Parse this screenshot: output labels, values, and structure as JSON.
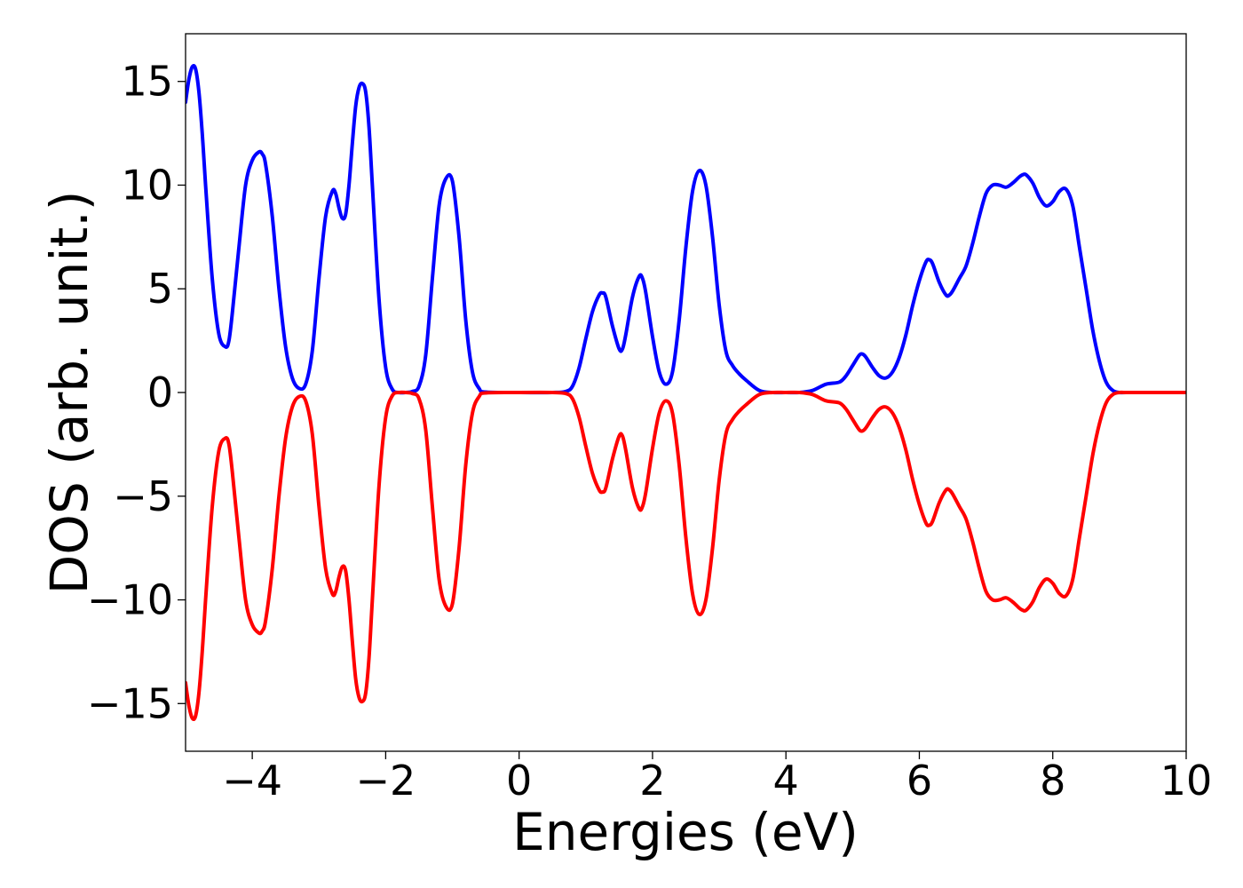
{
  "chart_data": {
    "type": "line",
    "title": "",
    "xlabel": "Energies (eV)",
    "ylabel": "DOS (arb. unit.)",
    "xlim": [
      -5,
      10
    ],
    "ylim": [
      -17.3,
      17.3
    ],
    "grid": false,
    "legend": "none",
    "x_ticks": [
      -4,
      -2,
      0,
      2,
      4,
      6,
      8,
      10
    ],
    "x_tick_labels": [
      "−4",
      "−2",
      "0",
      "2",
      "4",
      "6",
      "8",
      "10"
    ],
    "y_ticks": [
      15,
      10,
      5,
      0,
      -5,
      -10,
      -15
    ],
    "y_tick_labels": [
      "15",
      "10",
      "5",
      "0",
      "−5",
      "−10",
      "−15"
    ],
    "series": [
      {
        "color": "#0000ff",
        "x": [
          -5.0,
          -4.95,
          -4.9,
          -4.85,
          -4.8,
          -4.75,
          -4.7,
          -4.6,
          -4.5,
          -4.4,
          -4.35,
          -4.3,
          -4.2,
          -4.1,
          -4.0,
          -3.9,
          -3.85,
          -3.8,
          -3.7,
          -3.6,
          -3.5,
          -3.4,
          -3.3,
          -3.2,
          -3.1,
          -3.0,
          -2.9,
          -2.8,
          -2.75,
          -2.7,
          -2.65,
          -2.6,
          -2.55,
          -2.5,
          -2.45,
          -2.4,
          -2.35,
          -2.3,
          -2.25,
          -2.2,
          -2.1,
          -2.0,
          -1.9,
          -1.8,
          -1.7,
          -1.6,
          -1.5,
          -1.4,
          -1.3,
          -1.2,
          -1.1,
          -1.0,
          -0.9,
          -0.8,
          -0.7,
          -0.6,
          -0.5,
          0.0,
          0.5,
          0.7,
          0.8,
          0.9,
          1.0,
          1.1,
          1.2,
          1.25,
          1.3,
          1.4,
          1.5,
          1.55,
          1.6,
          1.7,
          1.8,
          1.85,
          1.9,
          2.0,
          2.1,
          2.2,
          2.3,
          2.4,
          2.5,
          2.6,
          2.7,
          2.8,
          2.9,
          3.0,
          3.1,
          3.2,
          3.3,
          3.4,
          3.6,
          3.8,
          4.0,
          4.2,
          4.4,
          4.6,
          4.8,
          4.9,
          5.0,
          5.1,
          5.15,
          5.2,
          5.3,
          5.4,
          5.5,
          5.6,
          5.7,
          5.8,
          5.9,
          6.0,
          6.1,
          6.15,
          6.2,
          6.3,
          6.4,
          6.45,
          6.5,
          6.6,
          6.7,
          6.8,
          6.9,
          7.0,
          7.1,
          7.2,
          7.3,
          7.4,
          7.5,
          7.55,
          7.6,
          7.7,
          7.8,
          7.9,
          8.0,
          8.1,
          8.2,
          8.3,
          8.4,
          8.5,
          8.6,
          8.7,
          8.8,
          8.9,
          9.0,
          9.1,
          9.5,
          10.0
        ],
        "y": [
          14.0,
          15.1,
          15.7,
          15.6,
          14.5,
          12.5,
          10.0,
          5.5,
          2.8,
          2.2,
          2.5,
          3.8,
          7.0,
          10.0,
          11.2,
          11.6,
          11.5,
          11.0,
          8.5,
          5.0,
          2.2,
          0.7,
          0.2,
          0.4,
          2.0,
          5.5,
          8.5,
          9.7,
          9.6,
          8.9,
          8.4,
          8.6,
          10.0,
          12.0,
          13.8,
          14.7,
          14.9,
          14.5,
          12.8,
          10.0,
          4.5,
          1.2,
          0.15,
          0.0,
          0.0,
          0.05,
          0.3,
          1.8,
          5.5,
          9.0,
          10.3,
          10.2,
          7.5,
          3.5,
          1.0,
          0.2,
          0.02,
          0.0,
          0.0,
          0.05,
          0.3,
          1.2,
          2.6,
          3.9,
          4.7,
          4.8,
          4.6,
          3.2,
          2.1,
          2.1,
          2.8,
          4.6,
          5.6,
          5.5,
          4.8,
          2.7,
          1.0,
          0.4,
          1.0,
          3.5,
          7.0,
          9.7,
          10.7,
          10.0,
          7.5,
          4.2,
          2.0,
          1.3,
          0.9,
          0.6,
          0.1,
          0.0,
          0.0,
          0.0,
          0.1,
          0.4,
          0.5,
          0.8,
          1.3,
          1.8,
          1.85,
          1.7,
          1.2,
          0.8,
          0.7,
          1.0,
          1.7,
          2.8,
          4.2,
          5.4,
          6.3,
          6.4,
          6.2,
          5.3,
          4.7,
          4.7,
          4.9,
          5.5,
          6.1,
          7.2,
          8.5,
          9.6,
          10.0,
          10.0,
          9.9,
          10.1,
          10.4,
          10.5,
          10.5,
          10.1,
          9.4,
          9.0,
          9.2,
          9.7,
          9.8,
          9.0,
          7.0,
          5.0,
          3.0,
          1.5,
          0.5,
          0.1,
          0.0,
          0.0,
          0.0,
          0.0
        ]
      },
      {
        "color": "#ff0000",
        "x": [
          -5.0,
          -4.95,
          -4.9,
          -4.85,
          -4.8,
          -4.75,
          -4.7,
          -4.6,
          -4.5,
          -4.4,
          -4.35,
          -4.3,
          -4.2,
          -4.1,
          -4.0,
          -3.9,
          -3.85,
          -3.8,
          -3.7,
          -3.6,
          -3.5,
          -3.4,
          -3.3,
          -3.2,
          -3.1,
          -3.0,
          -2.9,
          -2.8,
          -2.75,
          -2.7,
          -2.65,
          -2.6,
          -2.55,
          -2.5,
          -2.45,
          -2.4,
          -2.35,
          -2.3,
          -2.25,
          -2.2,
          -2.1,
          -2.0,
          -1.9,
          -1.8,
          -1.7,
          -1.6,
          -1.5,
          -1.4,
          -1.3,
          -1.2,
          -1.1,
          -1.0,
          -0.9,
          -0.8,
          -0.7,
          -0.6,
          -0.5,
          0.0,
          0.5,
          0.7,
          0.8,
          0.9,
          1.0,
          1.1,
          1.2,
          1.25,
          1.3,
          1.4,
          1.5,
          1.55,
          1.6,
          1.7,
          1.8,
          1.85,
          1.9,
          2.0,
          2.1,
          2.2,
          2.3,
          2.4,
          2.5,
          2.6,
          2.7,
          2.8,
          2.9,
          3.0,
          3.1,
          3.2,
          3.3,
          3.4,
          3.6,
          3.8,
          4.0,
          4.2,
          4.4,
          4.6,
          4.8,
          4.9,
          5.0,
          5.1,
          5.15,
          5.2,
          5.3,
          5.4,
          5.5,
          5.6,
          5.7,
          5.8,
          5.9,
          6.0,
          6.1,
          6.15,
          6.2,
          6.3,
          6.4,
          6.45,
          6.5,
          6.6,
          6.7,
          6.8,
          6.9,
          7.0,
          7.1,
          7.2,
          7.3,
          7.4,
          7.5,
          7.55,
          7.6,
          7.7,
          7.8,
          7.9,
          8.0,
          8.1,
          8.2,
          8.3,
          8.4,
          8.5,
          8.6,
          8.7,
          8.8,
          8.9,
          9.0,
          9.1,
          9.5,
          10.0
        ],
        "y": [
          -14.0,
          -15.1,
          -15.7,
          -15.6,
          -14.5,
          -12.5,
          -10.0,
          -5.5,
          -2.8,
          -2.2,
          -2.5,
          -3.8,
          -7.0,
          -10.0,
          -11.2,
          -11.6,
          -11.5,
          -11.0,
          -8.5,
          -5.0,
          -2.2,
          -0.7,
          -0.2,
          -0.4,
          -2.0,
          -5.5,
          -8.5,
          -9.7,
          -9.6,
          -8.9,
          -8.4,
          -8.6,
          -10.0,
          -12.0,
          -13.8,
          -14.7,
          -14.9,
          -14.5,
          -12.8,
          -10.0,
          -4.5,
          -1.2,
          -0.15,
          0.0,
          0.0,
          -0.05,
          -0.3,
          -1.8,
          -5.5,
          -9.0,
          -10.3,
          -10.2,
          -7.5,
          -3.5,
          -1.0,
          -0.2,
          -0.02,
          0.0,
          0.0,
          -0.05,
          -0.3,
          -1.2,
          -2.6,
          -3.9,
          -4.7,
          -4.8,
          -4.6,
          -3.2,
          -2.1,
          -2.1,
          -2.8,
          -4.6,
          -5.6,
          -5.5,
          -4.8,
          -2.7,
          -1.0,
          -0.4,
          -1.0,
          -3.5,
          -7.0,
          -9.7,
          -10.7,
          -10.0,
          -7.5,
          -4.2,
          -2.0,
          -1.3,
          -0.9,
          -0.6,
          -0.1,
          0.0,
          0.0,
          0.0,
          -0.1,
          -0.4,
          -0.5,
          -0.8,
          -1.3,
          -1.8,
          -1.85,
          -1.7,
          -1.2,
          -0.8,
          -0.7,
          -1.0,
          -1.7,
          -2.8,
          -4.2,
          -5.4,
          -6.3,
          -6.4,
          -6.2,
          -5.3,
          -4.7,
          -4.7,
          -4.9,
          -5.5,
          -6.1,
          -7.2,
          -8.5,
          -9.6,
          -10.0,
          -10.0,
          -9.9,
          -10.1,
          -10.4,
          -10.5,
          -10.5,
          -10.1,
          -9.4,
          -9.0,
          -9.2,
          -9.7,
          -9.8,
          -9.0,
          -7.0,
          -5.0,
          -3.0,
          -1.5,
          -0.5,
          -0.1,
          0.0,
          0.0,
          0.0,
          0.0
        ]
      }
    ]
  }
}
